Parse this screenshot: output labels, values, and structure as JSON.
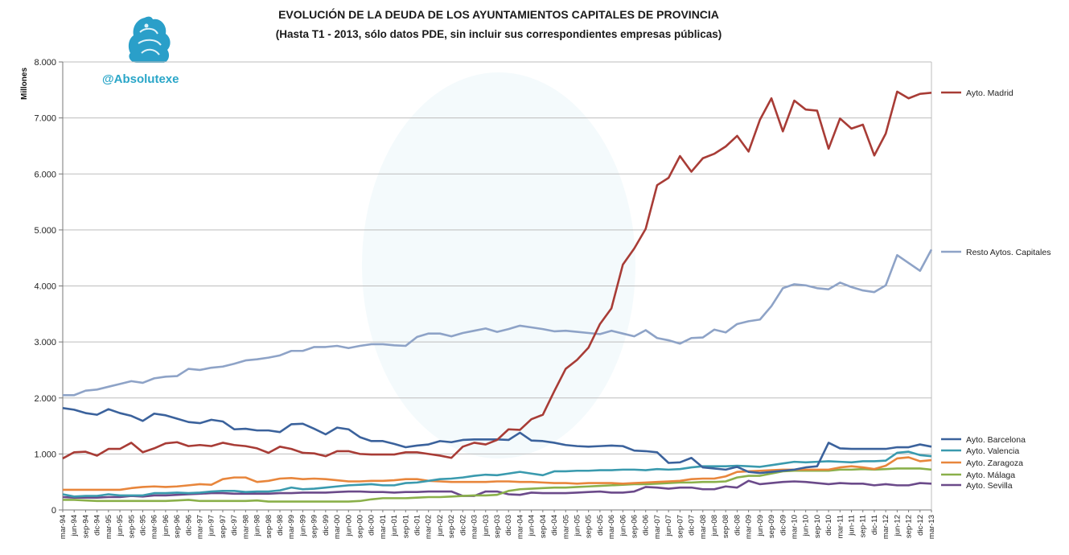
{
  "header": {
    "title": "EVOLUCIÓN DE LA DEUDA DE LOS AYUNTAMIENTOS CAPITALES DE PROVINCIA",
    "subtitle": "(Hasta T1 - 2013, sólo datos PDE, sin incluir sus correspondientes empresas públicas)"
  },
  "branding": {
    "handle": "@Absolutexe",
    "handle_color": "#2aa6c8",
    "logo_icon": "griffin-logo-icon",
    "logo_color": "#2a9fc9"
  },
  "chart_data": {
    "type": "line",
    "title": "EVOLUCIÓN DE LA DEUDA DE LOS AYUNTAMIENTOS CAPITALES DE PROVINCIA",
    "subtitle": "(Hasta T1 - 2013, sólo datos PDE, sin incluir sus correspondientes empresas públicas)",
    "ylabel": "Millones",
    "xlabel": "",
    "ylim": [
      0,
      8000
    ],
    "yticks": [
      0,
      1000,
      2000,
      3000,
      4000,
      5000,
      6000,
      7000,
      8000
    ],
    "ytick_labels": [
      "0",
      "1.000",
      "2.000",
      "3.000",
      "4.000",
      "5.000",
      "6.000",
      "7.000",
      "8.000"
    ],
    "grid": "horizontal",
    "legend_position": "right",
    "x_start_label": "mar-94",
    "x_end_label": "mar-13",
    "x_frequency": "quarterly",
    "x": [
      "mar-94",
      "jun-94",
      "sep-94",
      "dic-94",
      "mar-95",
      "jun-95",
      "sep-95",
      "dic-95",
      "mar-96",
      "jun-96",
      "sep-96",
      "dic-96",
      "mar-97",
      "jun-97",
      "sep-97",
      "dic-97",
      "mar-98",
      "jun-98",
      "sep-98",
      "dic-98",
      "mar-99",
      "jun-99",
      "sep-99",
      "dic-99",
      "mar-00",
      "jun-00",
      "sep-00",
      "dic-00",
      "mar-01",
      "jun-01",
      "sep-01",
      "dic-01",
      "mar-02",
      "jun-02",
      "sep-02",
      "dic-02",
      "mar-03",
      "jun-03",
      "sep-03",
      "dic-03",
      "mar-04",
      "jun-04",
      "sep-04",
      "dic-04",
      "mar-05",
      "jun-05",
      "sep-05",
      "dic-05",
      "mar-06",
      "jun-06",
      "sep-06",
      "dic-06",
      "mar-07",
      "jun-07",
      "sep-07",
      "dic-07",
      "mar-08",
      "jun-08",
      "sep-08",
      "dic-08",
      "mar-09",
      "jun-09",
      "sep-09",
      "dic-09",
      "mar-10",
      "jun-10",
      "sep-10",
      "dic-10",
      "mar-11",
      "jun-11",
      "sep-11",
      "dic-11",
      "mar-12",
      "jun-12",
      "sep-12",
      "dic-12",
      "mar-13"
    ],
    "series": [
      {
        "name": "Ayto. Madrid",
        "color": "#a83c36",
        "values": [
          920,
          1030,
          1040,
          970,
          1090,
          1090,
          1200,
          1030,
          1100,
          1190,
          1210,
          1140,
          1160,
          1140,
          1200,
          1160,
          1140,
          1100,
          1020,
          1130,
          1090,
          1020,
          1010,
          960,
          1050,
          1050,
          1000,
          990,
          990,
          990,
          1030,
          1030,
          1000,
          970,
          930,
          1130,
          1200,
          1170,
          1250,
          1440,
          1430,
          1620,
          1700,
          2120,
          2520,
          2680,
          2900,
          3320,
          3600,
          4380,
          4670,
          5020,
          5800,
          5930,
          6320,
          6040,
          6280,
          6360,
          6490,
          6680,
          6400,
          6970,
          7350,
          6760,
          7310,
          7150,
          7130,
          6450,
          6990,
          6810,
          6880,
          6330,
          6720,
          7470,
          7350,
          7430,
          7450
        ]
      },
      {
        "name": "Resto Aytos. Capitales",
        "color": "#8ea3c7",
        "values": [
          2050,
          2050,
          2130,
          2150,
          2200,
          2250,
          2300,
          2270,
          2350,
          2380,
          2390,
          2520,
          2500,
          2540,
          2560,
          2610,
          2670,
          2690,
          2720,
          2760,
          2840,
          2840,
          2910,
          2910,
          2930,
          2890,
          2930,
          2960,
          2960,
          2940,
          2930,
          3090,
          3150,
          3150,
          3100,
          3160,
          3200,
          3240,
          3180,
          3230,
          3290,
          3260,
          3230,
          3190,
          3200,
          3180,
          3160,
          3140,
          3200,
          3150,
          3100,
          3210,
          3070,
          3030,
          2970,
          3070,
          3080,
          3220,
          3170,
          3320,
          3370,
          3400,
          3640,
          3960,
          4030,
          4010,
          3960,
          3940,
          4060,
          3980,
          3920,
          3890,
          4010,
          4550,
          4410,
          4270,
          4650
        ]
      },
      {
        "name": "Ayto. Barcelona",
        "color": "#3b629c",
        "values": [
          1820,
          1790,
          1730,
          1700,
          1800,
          1730,
          1680,
          1590,
          1720,
          1690,
          1630,
          1570,
          1550,
          1610,
          1580,
          1440,
          1450,
          1420,
          1420,
          1390,
          1530,
          1540,
          1450,
          1350,
          1470,
          1440,
          1300,
          1230,
          1230,
          1180,
          1120,
          1150,
          1170,
          1230,
          1210,
          1250,
          1260,
          1260,
          1260,
          1250,
          1380,
          1240,
          1230,
          1200,
          1160,
          1140,
          1130,
          1140,
          1150,
          1140,
          1060,
          1050,
          1030,
          840,
          850,
          930,
          760,
          740,
          720,
          770,
          680,
          660,
          680,
          700,
          720,
          760,
          780,
          1200,
          1100,
          1090,
          1090,
          1090,
          1090,
          1120,
          1120,
          1170,
          1130
        ]
      },
      {
        "name": "Ayto. Valencia",
        "color": "#3a9aae",
        "values": [
          280,
          240,
          250,
          250,
          280,
          260,
          260,
          260,
          300,
          300,
          310,
          300,
          310,
          330,
          340,
          340,
          320,
          330,
          330,
          350,
          400,
          370,
          380,
          400,
          420,
          440,
          450,
          460,
          440,
          440,
          480,
          490,
          520,
          550,
          560,
          580,
          610,
          630,
          620,
          650,
          680,
          650,
          620,
          690,
          690,
          700,
          700,
          710,
          710,
          720,
          720,
          710,
          730,
          720,
          730,
          760,
          780,
          780,
          780,
          790,
          780,
          770,
          800,
          830,
          860,
          850,
          860,
          870,
          860,
          850,
          870,
          870,
          880,
          1020,
          1040,
          980,
          960
        ]
      },
      {
        "name": "Ayto. Zaragoza",
        "color": "#e8863c",
        "values": [
          360,
          360,
          360,
          360,
          360,
          360,
          390,
          410,
          420,
          410,
          420,
          440,
          460,
          450,
          550,
          580,
          580,
          500,
          520,
          560,
          570,
          550,
          560,
          550,
          530,
          510,
          510,
          520,
          520,
          530,
          550,
          550,
          520,
          510,
          500,
          500,
          500,
          500,
          510,
          510,
          500,
          500,
          490,
          480,
          480,
          470,
          480,
          480,
          480,
          470,
          480,
          490,
          500,
          510,
          520,
          550,
          560,
          560,
          600,
          680,
          690,
          700,
          710,
          720,
          720,
          720,
          720,
          720,
          760,
          780,
          760,
          730,
          790,
          920,
          940,
          870,
          890
        ]
      },
      {
        "name": "Ayto. Málaga",
        "color": "#8ab04a",
        "values": [
          180,
          180,
          170,
          160,
          160,
          160,
          160,
          160,
          160,
          160,
          170,
          180,
          160,
          160,
          160,
          160,
          160,
          170,
          150,
          150,
          150,
          150,
          150,
          150,
          150,
          150,
          160,
          190,
          210,
          210,
          210,
          220,
          230,
          230,
          240,
          250,
          260,
          260,
          270,
          340,
          370,
          380,
          390,
          400,
          400,
          410,
          420,
          430,
          440,
          450,
          460,
          460,
          470,
          480,
          490,
          490,
          500,
          500,
          510,
          580,
          610,
          610,
          650,
          690,
          700,
          700,
          700,
          700,
          720,
          720,
          730,
          720,
          730,
          740,
          740,
          740,
          720
        ]
      },
      {
        "name": "Ayto. Sevilla",
        "color": "#6b4a8a",
        "values": [
          230,
          220,
          220,
          220,
          230,
          230,
          250,
          240,
          260,
          260,
          270,
          280,
          290,
          300,
          300,
          290,
          290,
          290,
          290,
          300,
          300,
          310,
          310,
          310,
          320,
          330,
          330,
          320,
          320,
          310,
          320,
          320,
          330,
          330,
          330,
          250,
          250,
          330,
          330,
          280,
          270,
          310,
          300,
          300,
          300,
          310,
          320,
          330,
          310,
          310,
          330,
          410,
          400,
          380,
          400,
          400,
          370,
          370,
          420,
          400,
          520,
          460,
          480,
          500,
          510,
          500,
          480,
          460,
          480,
          470,
          470,
          440,
          460,
          440,
          440,
          480,
          470
        ]
      }
    ]
  }
}
